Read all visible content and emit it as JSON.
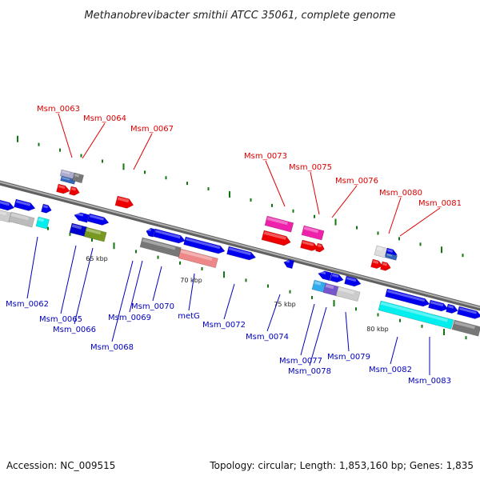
{
  "title": "Methanobrevibacter smithii ATCC 35061, complete genome",
  "footer": {
    "accession": "Accession: NC_009515",
    "topology": "Topology: circular; Length: 1,853,160 bp; Genes: 1,835"
  },
  "colors": {
    "forward_label": "#dd0000",
    "reverse_label": "#0000bb",
    "backbone": "#888888"
  },
  "scale": {
    "ticks": [
      "65 kbp",
      "70 kbp",
      "75 kbp",
      "80 kbp"
    ]
  },
  "top_labels": [
    "Msm_0063",
    "Msm_0064",
    "Msm_0067",
    "Msm_0073",
    "Msm_0075",
    "Msm_0076",
    "Msm_0080",
    "Msm_0081"
  ],
  "bottom_labels": [
    "Msm_0062",
    "Msm_0065",
    "Msm_0066",
    "Msm_0068",
    "Msm_0069",
    "Msm_0070",
    "metG",
    "Msm_0072",
    "Msm_0074",
    "Msm_0077",
    "Msm_0078",
    "Msm_0079",
    "Msm_0082",
    "Msm_0083"
  ]
}
